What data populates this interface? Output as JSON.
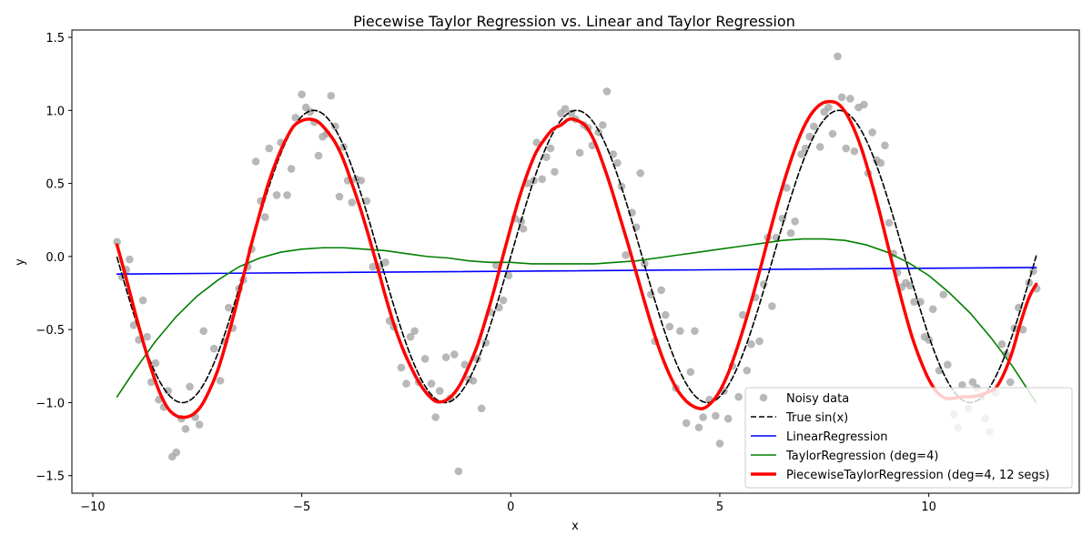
{
  "chart_data": {
    "type": "line",
    "title": "Piecewise Taylor Regression vs. Linear and Taylor Regression",
    "xlabel": "x",
    "ylabel": "y",
    "xlim": [
      -10.5,
      13.6
    ],
    "ylim": [
      -1.62,
      1.55
    ],
    "xticks": [
      -10,
      -5,
      0,
      5,
      10
    ],
    "yticks": [
      -1.5,
      -1.0,
      -0.5,
      0.0,
      0.5,
      1.0,
      1.5
    ],
    "xtick_labels": [
      "−10",
      "−5",
      "0",
      "5",
      "10"
    ],
    "ytick_labels": [
      "−1.5",
      "−1.0",
      "−0.5",
      "0.0",
      "0.5",
      "1.0",
      "1.5"
    ],
    "grid": false,
    "legend_position": "lower-right",
    "series": [
      {
        "name": "Noisy data",
        "kind": "scatter",
        "color": "#a0a0a0",
        "points": [
          [
            -9.42,
            0.1
          ],
          [
            -9.3,
            -0.14
          ],
          [
            -9.2,
            -0.09
          ],
          [
            -9.12,
            -0.02
          ],
          [
            -9.02,
            -0.47
          ],
          [
            -8.9,
            -0.57
          ],
          [
            -8.8,
            -0.3
          ],
          [
            -8.7,
            -0.55
          ],
          [
            -8.6,
            -0.86
          ],
          [
            -8.5,
            -0.73
          ],
          [
            -8.42,
            -0.98
          ],
          [
            -8.3,
            -1.03
          ],
          [
            -8.2,
            -0.92
          ],
          [
            -8.1,
            -1.37
          ],
          [
            -8.0,
            -1.34
          ],
          [
            -7.88,
            -1.11
          ],
          [
            -7.78,
            -1.18
          ],
          [
            -7.68,
            -0.89
          ],
          [
            -7.55,
            -1.1
          ],
          [
            -7.45,
            -1.15
          ],
          [
            -7.35,
            -0.51
          ],
          [
            -7.1,
            -0.63
          ],
          [
            -6.95,
            -0.85
          ],
          [
            -6.85,
            -0.58
          ],
          [
            -6.75,
            -0.35
          ],
          [
            -6.65,
            -0.49
          ],
          [
            -6.5,
            -0.22
          ],
          [
            -6.4,
            -0.16
          ],
          [
            -6.3,
            -0.07
          ],
          [
            -6.2,
            0.05
          ],
          [
            -6.1,
            0.65
          ],
          [
            -5.98,
            0.38
          ],
          [
            -5.88,
            0.27
          ],
          [
            -5.78,
            0.74
          ],
          [
            -5.6,
            0.42
          ],
          [
            -5.5,
            0.78
          ],
          [
            -5.35,
            0.42
          ],
          [
            -5.25,
            0.6
          ],
          [
            -5.15,
            0.95
          ],
          [
            -5.0,
            1.11
          ],
          [
            -4.9,
            1.02
          ],
          [
            -4.8,
            0.99
          ],
          [
            -4.7,
            0.92
          ],
          [
            -4.6,
            0.69
          ],
          [
            -4.5,
            0.82
          ],
          [
            -4.4,
            0.84
          ],
          [
            -4.3,
            1.1
          ],
          [
            -4.2,
            0.89
          ],
          [
            -4.1,
            0.41
          ],
          [
            -4.0,
            0.75
          ],
          [
            -3.9,
            0.52
          ],
          [
            -3.8,
            0.37
          ],
          [
            -3.7,
            0.53
          ],
          [
            -3.58,
            0.52
          ],
          [
            -3.45,
            0.38
          ],
          [
            -3.3,
            -0.07
          ],
          [
            -3.15,
            -0.07
          ],
          [
            -3.0,
            -0.04
          ],
          [
            -2.9,
            -0.44
          ],
          [
            -2.8,
            -0.48
          ],
          [
            -2.62,
            -0.76
          ],
          [
            -2.5,
            -0.87
          ],
          [
            -2.4,
            -0.55
          ],
          [
            -2.3,
            -0.51
          ],
          [
            -2.2,
            -0.86
          ],
          [
            -2.05,
            -0.7
          ],
          [
            -1.9,
            -0.87
          ],
          [
            -1.8,
            -1.1
          ],
          [
            -1.7,
            -0.92
          ],
          [
            -1.55,
            -0.69
          ],
          [
            -1.45,
            -0.97
          ],
          [
            -1.35,
            -0.67
          ],
          [
            -1.25,
            -1.47
          ],
          [
            -1.1,
            -0.74
          ],
          [
            -1.0,
            -0.84
          ],
          [
            -0.9,
            -0.85
          ],
          [
            -0.8,
            -0.7
          ],
          [
            -0.7,
            -1.04
          ],
          [
            -0.6,
            -0.59
          ],
          [
            -0.5,
            -0.38
          ],
          [
            -0.35,
            -0.06
          ],
          [
            -0.28,
            -0.35
          ],
          [
            -0.18,
            -0.3
          ],
          [
            -0.05,
            -0.13
          ],
          [
            0.1,
            0.26
          ],
          [
            0.25,
            0.24
          ],
          [
            0.3,
            0.19
          ],
          [
            0.4,
            0.5
          ],
          [
            0.55,
            0.52
          ],
          [
            0.62,
            0.78
          ],
          [
            0.75,
            0.53
          ],
          [
            0.85,
            0.68
          ],
          [
            0.95,
            0.74
          ],
          [
            1.05,
            0.58
          ],
          [
            1.2,
            0.98
          ],
          [
            1.3,
            1.01
          ],
          [
            1.45,
            0.98
          ],
          [
            1.55,
            0.94
          ],
          [
            1.65,
            0.71
          ],
          [
            1.75,
            0.9
          ],
          [
            1.85,
            0.88
          ],
          [
            1.95,
            0.76
          ],
          [
            2.1,
            0.85
          ],
          [
            2.2,
            0.9
          ],
          [
            2.3,
            1.13
          ],
          [
            2.45,
            0.7
          ],
          [
            2.55,
            0.64
          ],
          [
            2.65,
            0.48
          ],
          [
            2.75,
            0.01
          ],
          [
            2.9,
            0.3
          ],
          [
            3.0,
            0.2
          ],
          [
            3.1,
            0.57
          ],
          [
            3.2,
            -0.05
          ],
          [
            3.35,
            -0.26
          ],
          [
            3.45,
            -0.58
          ],
          [
            3.6,
            -0.23
          ],
          [
            3.7,
            -0.4
          ],
          [
            3.8,
            -0.48
          ],
          [
            3.95,
            -0.9
          ],
          [
            4.05,
            -0.51
          ],
          [
            4.2,
            -1.14
          ],
          [
            4.3,
            -0.79
          ],
          [
            4.4,
            -0.51
          ],
          [
            4.5,
            -1.17
          ],
          [
            4.6,
            -1.1
          ],
          [
            4.75,
            -0.98
          ],
          [
            4.9,
            -1.09
          ],
          [
            5.0,
            -1.28
          ],
          [
            5.1,
            -0.92
          ],
          [
            5.2,
            -1.11
          ],
          [
            5.3,
            -0.75
          ],
          [
            5.45,
            -0.96
          ],
          [
            5.55,
            -0.4
          ],
          [
            5.65,
            -0.78
          ],
          [
            5.75,
            -0.6
          ],
          [
            5.85,
            -0.28
          ],
          [
            5.95,
            -0.58
          ],
          [
            6.05,
            -0.19
          ],
          [
            6.15,
            0.13
          ],
          [
            6.25,
            -0.34
          ],
          [
            6.35,
            0.13
          ],
          [
            6.5,
            0.26
          ],
          [
            6.6,
            0.47
          ],
          [
            6.7,
            0.16
          ],
          [
            6.8,
            0.24
          ],
          [
            6.95,
            0.7
          ],
          [
            7.05,
            0.74
          ],
          [
            7.15,
            0.82
          ],
          [
            7.25,
            0.89
          ],
          [
            7.4,
            0.75
          ],
          [
            7.5,
            0.99
          ],
          [
            7.6,
            1.02
          ],
          [
            7.7,
            0.84
          ],
          [
            7.82,
            1.37
          ],
          [
            7.92,
            1.09
          ],
          [
            8.02,
            0.74
          ],
          [
            8.12,
            1.08
          ],
          [
            8.22,
            0.72
          ],
          [
            8.32,
            1.02
          ],
          [
            8.45,
            1.04
          ],
          [
            8.55,
            0.57
          ],
          [
            8.65,
            0.85
          ],
          [
            8.75,
            0.66
          ],
          [
            8.85,
            0.64
          ],
          [
            8.95,
            0.76
          ],
          [
            9.05,
            0.23
          ],
          [
            9.15,
            0.02
          ],
          [
            9.25,
            -0.11
          ],
          [
            9.35,
            -0.21
          ],
          [
            9.45,
            -0.18
          ],
          [
            9.55,
            -0.2
          ],
          [
            9.65,
            -0.31
          ],
          [
            9.8,
            -0.31
          ],
          [
            9.9,
            -0.55
          ],
          [
            10.0,
            -0.57
          ],
          [
            10.1,
            -0.36
          ],
          [
            10.25,
            -0.78
          ],
          [
            10.35,
            -0.26
          ],
          [
            10.45,
            -0.74
          ],
          [
            10.6,
            -1.08
          ],
          [
            10.7,
            -1.17
          ],
          [
            10.8,
            -0.88
          ],
          [
            10.95,
            -1.04
          ],
          [
            11.05,
            -0.86
          ],
          [
            11.15,
            -0.9
          ],
          [
            11.25,
            -0.96
          ],
          [
            11.35,
            -1.11
          ],
          [
            11.45,
            -1.2
          ],
          [
            11.6,
            -0.93
          ],
          [
            11.75,
            -0.6
          ],
          [
            11.85,
            -0.67
          ],
          [
            11.95,
            -0.86
          ],
          [
            12.05,
            -0.49
          ],
          [
            12.15,
            -0.35
          ],
          [
            12.25,
            -0.5
          ],
          [
            12.4,
            -0.18
          ],
          [
            12.5,
            -0.1
          ],
          [
            12.58,
            -0.22
          ]
        ]
      },
      {
        "name": "True sin(x)",
        "kind": "line",
        "function": "sin",
        "x_range": [
          -9.42,
          12.57
        ],
        "color": "#000000",
        "dash": true
      },
      {
        "name": "LinearRegression",
        "kind": "line",
        "color": "#0000ff",
        "x": [
          -9.42,
          12.57
        ],
        "y": [
          -0.12,
          -0.075
        ]
      },
      {
        "name": "TaylorRegression (deg=4)",
        "kind": "line",
        "color": "#008000",
        "x": [
          -9.42,
          -9.0,
          -8.5,
          -8.0,
          -7.5,
          -7.0,
          -6.5,
          -6.0,
          -5.5,
          -5.0,
          -4.5,
          -4.0,
          -3.5,
          -3.0,
          -2.5,
          -2.0,
          -1.5,
          -1.0,
          -0.5,
          0.0,
          0.5,
          1.0,
          1.5,
          2.0,
          2.5,
          3.0,
          3.5,
          4.0,
          4.5,
          5.0,
          5.5,
          6.0,
          6.5,
          7.0,
          7.5,
          8.0,
          8.5,
          9.0,
          9.5,
          10.0,
          10.5,
          11.0,
          11.5,
          12.0,
          12.57
        ],
        "y": [
          -0.96,
          -0.78,
          -0.58,
          -0.41,
          -0.27,
          -0.16,
          -0.07,
          -0.01,
          0.03,
          0.05,
          0.06,
          0.06,
          0.05,
          0.04,
          0.02,
          0.0,
          -0.01,
          -0.03,
          -0.04,
          -0.04,
          -0.05,
          -0.05,
          -0.05,
          -0.05,
          -0.04,
          -0.03,
          -0.01,
          0.01,
          0.03,
          0.05,
          0.07,
          0.09,
          0.11,
          0.12,
          0.12,
          0.11,
          0.08,
          0.03,
          -0.04,
          -0.13,
          -0.25,
          -0.39,
          -0.56,
          -0.75,
          -1.0
        ]
      },
      {
        "name": "PiecewiseTaylorRegression (deg=4, 12 segs)",
        "kind": "line",
        "color": "#ff0000",
        "bold": true,
        "x": [
          -9.42,
          -9.2,
          -9.0,
          -8.8,
          -8.6,
          -8.4,
          -8.2,
          -8.0,
          -7.8,
          -7.6,
          -7.4,
          -7.2,
          -7.0,
          -6.8,
          -6.6,
          -6.4,
          -6.2,
          -6.0,
          -5.8,
          -5.6,
          -5.4,
          -5.2,
          -5.0,
          -4.8,
          -4.6,
          -4.4,
          -4.2,
          -4.0,
          -3.8,
          -3.6,
          -3.4,
          -3.2,
          -3.0,
          -2.8,
          -2.6,
          -2.4,
          -2.2,
          -2.0,
          -1.8,
          -1.6,
          -1.4,
          -1.2,
          -1.0,
          -0.8,
          -0.6,
          -0.4,
          -0.2,
          0.0,
          0.2,
          0.4,
          0.6,
          0.8,
          1.0,
          1.2,
          1.4,
          1.6,
          1.8,
          2.0,
          2.2,
          2.4,
          2.6,
          2.8,
          3.0,
          3.2,
          3.4,
          3.6,
          3.8,
          4.0,
          4.2,
          4.4,
          4.6,
          4.8,
          5.0,
          5.2,
          5.4,
          5.6,
          5.8,
          6.0,
          6.2,
          6.4,
          6.6,
          6.8,
          7.0,
          7.2,
          7.4,
          7.6,
          7.8,
          8.0,
          8.2,
          8.4,
          8.6,
          8.8,
          9.0,
          9.2,
          9.4,
          9.6,
          9.8,
          10.0,
          10.2,
          10.4,
          10.6,
          10.8,
          11.0,
          11.2,
          11.4,
          11.6,
          11.8,
          12.0,
          12.2,
          12.4,
          12.57
        ],
        "y": [
          0.08,
          -0.15,
          -0.37,
          -0.58,
          -0.77,
          -0.93,
          -1.04,
          -1.09,
          -1.1,
          -1.08,
          -1.02,
          -0.91,
          -0.77,
          -0.58,
          -0.37,
          -0.14,
          0.09,
          0.3,
          0.5,
          0.66,
          0.79,
          0.89,
          0.93,
          0.94,
          0.92,
          0.86,
          0.78,
          0.66,
          0.5,
          0.33,
          0.14,
          -0.06,
          -0.27,
          -0.46,
          -0.62,
          -0.75,
          -0.86,
          -0.94,
          -0.99,
          -0.99,
          -0.95,
          -0.87,
          -0.75,
          -0.61,
          -0.43,
          -0.23,
          -0.01,
          0.2,
          0.4,
          0.57,
          0.71,
          0.8,
          0.87,
          0.9,
          0.94,
          0.93,
          0.89,
          0.79,
          0.64,
          0.47,
          0.28,
          0.09,
          -0.11,
          -0.31,
          -0.5,
          -0.67,
          -0.81,
          -0.92,
          -0.99,
          -1.03,
          -1.04,
          -1.0,
          -0.92,
          -0.8,
          -0.64,
          -0.46,
          -0.26,
          -0.05,
          0.17,
          0.38,
          0.57,
          0.74,
          0.88,
          0.98,
          1.04,
          1.06,
          1.05,
          0.99,
          0.88,
          0.73,
          0.54,
          0.33,
          0.1,
          -0.13,
          -0.35,
          -0.55,
          -0.71,
          -0.84,
          -0.93,
          -0.97,
          -0.97,
          -0.96,
          -0.96,
          -0.95,
          -0.93,
          -0.9,
          -0.8,
          -0.65,
          -0.45,
          -0.28,
          -0.19
        ]
      }
    ]
  }
}
